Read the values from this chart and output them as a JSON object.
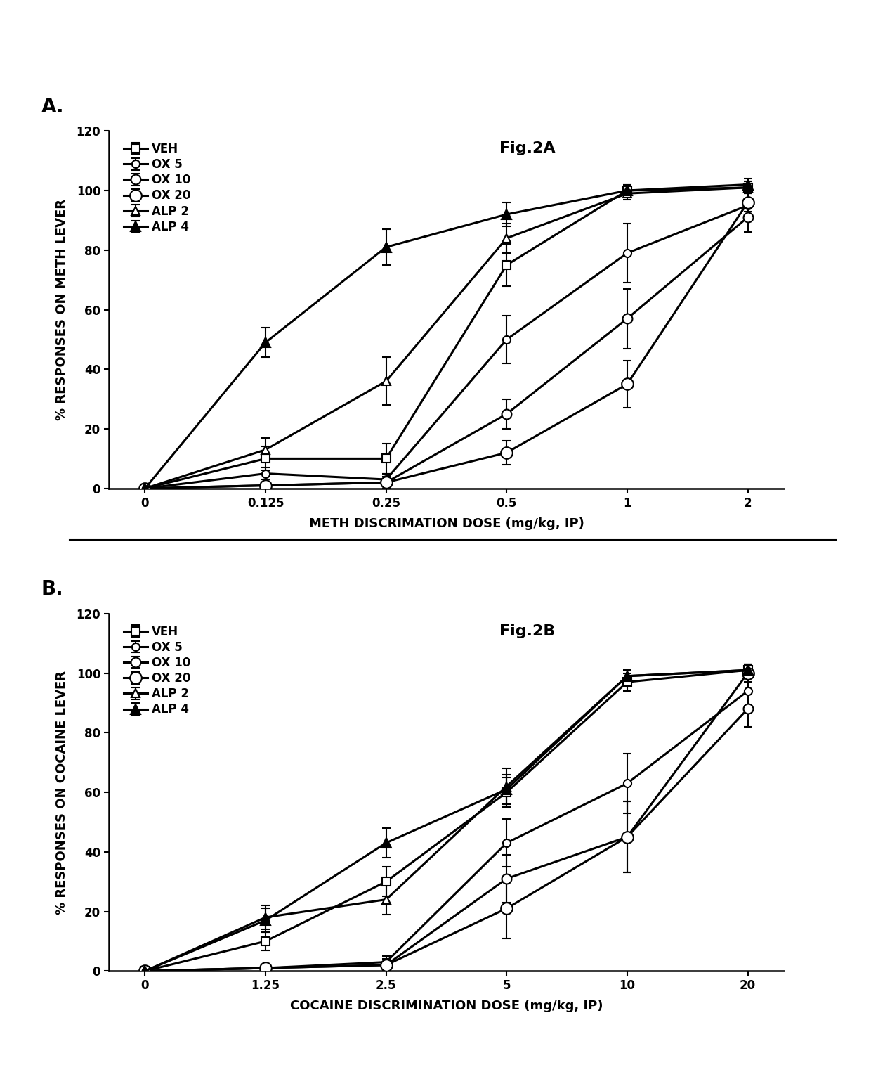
{
  "panel_A": {
    "title": "Fig.2A",
    "xlabel": "METH DISCRIMATION DOSE (mg/kg, IP)",
    "ylabel": "% RESPONSES ON METH LEVER",
    "x_positions": [
      0,
      1,
      2,
      3,
      4,
      5
    ],
    "x_labels": [
      "0",
      "0.125",
      "0.25",
      "0.5",
      "1",
      "2"
    ],
    "ylim": [
      0,
      120
    ],
    "yticks": [
      0,
      20,
      40,
      60,
      80,
      100,
      120
    ],
    "series": [
      {
        "label": "VEH",
        "marker": "s",
        "filled": false,
        "y": [
          0,
          10,
          10,
          75,
          100,
          101
        ],
        "yerr": [
          0,
          4,
          5,
          7,
          2,
          2
        ]
      },
      {
        "label": "OX 5",
        "marker": "o",
        "filled": false,
        "y": [
          0,
          5,
          3,
          50,
          79,
          95
        ],
        "yerr": [
          0,
          2,
          2,
          8,
          10,
          5
        ]
      },
      {
        "label": "OX 10",
        "marker": "o",
        "filled": false,
        "y": [
          0,
          1,
          2,
          25,
          57,
          91
        ],
        "yerr": [
          0,
          1,
          2,
          5,
          10,
          5
        ]
      },
      {
        "label": "OX 20",
        "marker": "o",
        "filled": false,
        "y": [
          0,
          1,
          2,
          12,
          35,
          96
        ],
        "yerr": [
          0,
          1,
          1,
          4,
          8,
          3
        ]
      },
      {
        "label": "ALP 2",
        "marker": "^",
        "filled": false,
        "y": [
          0,
          13,
          36,
          84,
          99,
          101
        ],
        "yerr": [
          0,
          4,
          8,
          5,
          2,
          2
        ]
      },
      {
        "label": "ALP 4",
        "marker": "^",
        "filled": true,
        "y": [
          0,
          49,
          81,
          92,
          100,
          102
        ],
        "yerr": [
          0,
          5,
          6,
          4,
          2,
          2
        ]
      }
    ]
  },
  "panel_B": {
    "title": "Fig.2B",
    "xlabel": "COCAINE DISCRIMINATION DOSE (mg/kg, IP)",
    "ylabel": "% RESPONSES ON COCAINE LEVER",
    "x_positions": [
      0,
      1,
      2,
      3,
      4,
      5
    ],
    "x_labels": [
      "0",
      "1.25",
      "2.5",
      "5",
      "10",
      "20"
    ],
    "ylim": [
      0,
      120
    ],
    "yticks": [
      0,
      20,
      40,
      60,
      80,
      100,
      120
    ],
    "series": [
      {
        "label": "VEH",
        "marker": "s",
        "filled": false,
        "y": [
          0,
          10,
          30,
          60,
          97,
          101
        ],
        "yerr": [
          0,
          3,
          5,
          5,
          3,
          2
        ]
      },
      {
        "label": "OX 5",
        "marker": "o",
        "filled": false,
        "y": [
          0,
          1,
          3,
          43,
          63,
          94
        ],
        "yerr": [
          0,
          1,
          2,
          8,
          10,
          5
        ]
      },
      {
        "label": "OX 10",
        "marker": "o",
        "filled": false,
        "y": [
          0,
          1,
          2,
          31,
          45,
          88
        ],
        "yerr": [
          0,
          1,
          2,
          8,
          12,
          6
        ]
      },
      {
        "label": "OX 20",
        "marker": "o",
        "filled": false,
        "y": [
          0,
          1,
          2,
          21,
          45,
          100
        ],
        "yerr": [
          0,
          1,
          1,
          10,
          12,
          3
        ]
      },
      {
        "label": "ALP 2",
        "marker": "^",
        "filled": false,
        "y": [
          0,
          18,
          24,
          62,
          99,
          101
        ],
        "yerr": [
          0,
          4,
          5,
          6,
          2,
          2
        ]
      },
      {
        "label": "ALP 4",
        "marker": "^",
        "filled": true,
        "y": [
          0,
          17,
          43,
          61,
          99,
          101
        ],
        "yerr": [
          0,
          4,
          5,
          5,
          2,
          2
        ]
      }
    ]
  },
  "background_color": "#ffffff",
  "font_size_label": 13,
  "font_size_tick": 12,
  "font_size_legend": 12,
  "font_size_title": 16,
  "font_size_panel": 20,
  "panel_label_A": "A.",
  "panel_label_B": "B.",
  "marker_size": 9,
  "line_width": 2.2
}
